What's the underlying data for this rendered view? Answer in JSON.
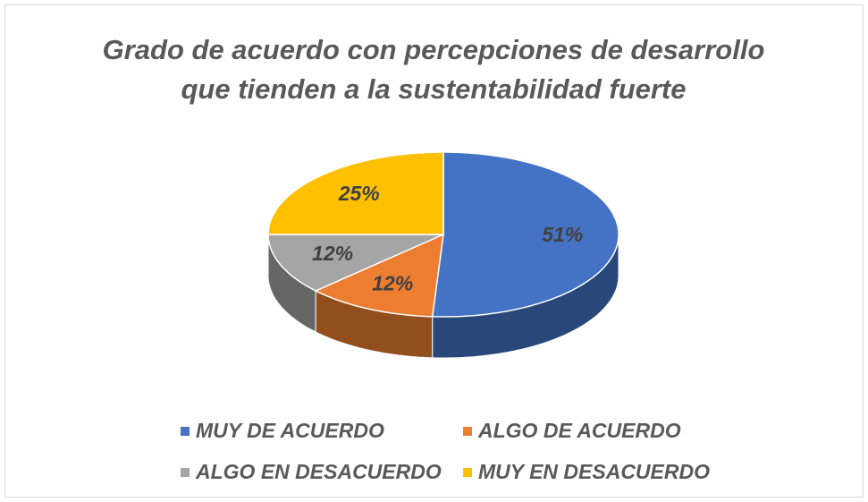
{
  "chart_data": {
    "type": "pie",
    "title": [
      "Grado de acuerdo con percepciones de desarrollo",
      "que tienden a la sustentabilidad fuerte"
    ],
    "categories": [
      "MUY DE ACUERDO",
      "ALGO DE ACUERDO",
      "ALGO EN DESACUERDO",
      "MUY EN DESACUERDO"
    ],
    "values": [
      51,
      12,
      12,
      25
    ],
    "value_labels": [
      "51%",
      "12%",
      "12%",
      "25%"
    ],
    "colors": [
      "#4472c4",
      "#ed7d31",
      "#a5a5a5",
      "#ffc000"
    ]
  }
}
